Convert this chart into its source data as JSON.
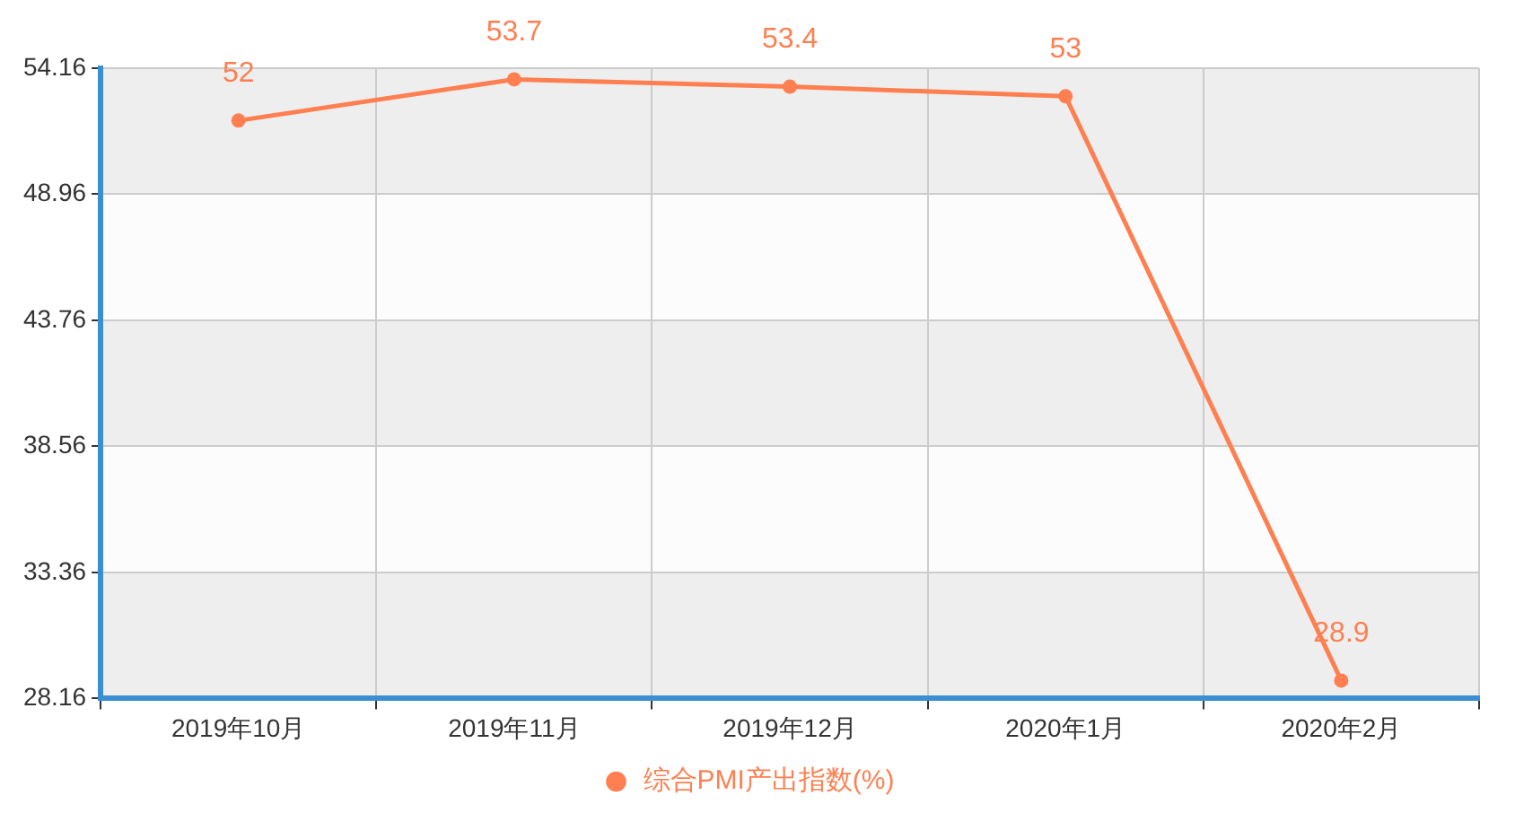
{
  "chart_data": {
    "type": "line",
    "categories": [
      "2019年10月",
      "2019年11月",
      "2019年12月",
      "2020年1月",
      "2020年2月"
    ],
    "series": [
      {
        "name": "综合PMI产出指数(%)",
        "color": "#ff7f50",
        "values": [
          52,
          53.7,
          53.4,
          53,
          28.9
        ]
      }
    ],
    "ylim": [
      28.16,
      54.16
    ],
    "yticks": [
      28.16,
      33.36,
      38.56,
      43.76,
      48.96,
      54.16
    ],
    "grid": true,
    "legend": "bottom",
    "marker": "circle",
    "line_style": "solid",
    "data_labels": true
  }
}
